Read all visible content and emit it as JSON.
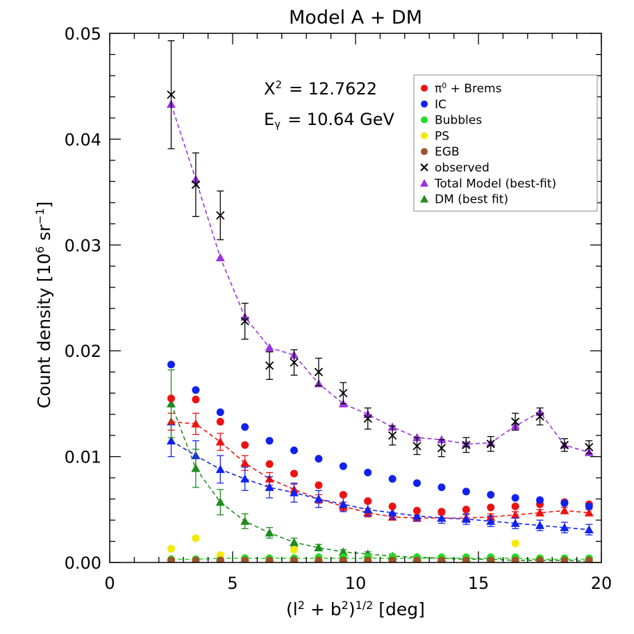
{
  "chart_data": {
    "type": "scatter",
    "title": "Model A + DM",
    "xlabel_parts": [
      "(l",
      "2",
      " + b",
      "2",
      ")",
      "1/2",
      " [deg]"
    ],
    "ylabel_parts": [
      "Count density  [10",
      "6",
      " sr",
      "−1",
      "]"
    ],
    "xlim": [
      0,
      20
    ],
    "ylim": [
      0,
      0.05
    ],
    "xticks": [
      0,
      5,
      10,
      15,
      20
    ],
    "xtick_labels": [
      "0",
      "5",
      "10",
      "15",
      "20"
    ],
    "yticks": [
      0,
      0.01,
      0.02,
      0.03,
      0.04,
      0.05
    ],
    "ytick_labels": [
      "0.00",
      "0.01",
      "0.02",
      "0.03",
      "0.04",
      "0.05"
    ],
    "annotations": {
      "chi2": [
        "X",
        "2",
        "= 12.7622"
      ],
      "energy": [
        "E",
        "γ",
        "= 10.64 GeV"
      ]
    },
    "legend_position": "top-right",
    "x": [
      2.5,
      3.5,
      4.5,
      5.5,
      6.5,
      7.5,
      8.5,
      9.5,
      10.5,
      11.5,
      12.5,
      13.5,
      14.5,
      15.5,
      16.5,
      17.5,
      18.5,
      19.5
    ],
    "series": [
      {
        "name": "π⁰ + Brems",
        "legend_parts": [
          "π",
          "0",
          " + Brems"
        ],
        "marker": "circle",
        "color": "#ee1111",
        "values": [
          0.0155,
          0.0154,
          0.0133,
          0.0111,
          0.0093,
          0.0084,
          0.0073,
          0.0064,
          0.0058,
          0.0053,
          0.0049,
          0.0048,
          0.005,
          0.0052,
          0.0053,
          0.0055,
          0.0057,
          0.0055
        ]
      },
      {
        "name": "IC",
        "marker": "circle",
        "color": "#1122ee",
        "values": [
          0.0187,
          0.0163,
          0.0142,
          0.0128,
          0.0115,
          0.0106,
          0.0098,
          0.0091,
          0.0085,
          0.0079,
          0.0075,
          0.0071,
          0.0067,
          0.0064,
          0.0061,
          0.0059,
          0.0056,
          0.0053
        ]
      },
      {
        "name": "Bubbles",
        "marker": "circle",
        "color": "#22dd22",
        "values": [
          0.0003,
          0.0003,
          0.0003,
          0.0004,
          0.0004,
          0.0004,
          0.0005,
          0.0005,
          0.0005,
          0.0005,
          0.0005,
          0.0005,
          0.0005,
          0.0005,
          0.0005,
          0.0004,
          0.0004,
          0.0004
        ]
      },
      {
        "name": "PS",
        "marker": "circle",
        "color": "#f2ea00",
        "values": [
          0.0013,
          0.0023,
          0.0007,
          0.0002,
          0.0002,
          0.0012,
          0.0002,
          0.0001,
          0.0001,
          0.0001,
          0.0001,
          0.0001,
          0.0001,
          0.0001,
          0.0018,
          0.0001,
          0.0001,
          0.0001
        ]
      },
      {
        "name": "EGB",
        "marker": "circle",
        "color": "#a0522d",
        "values": [
          0.0002,
          0.0002,
          0.0002,
          0.0002,
          0.0002,
          0.0002,
          0.0002,
          0.0002,
          0.0002,
          0.0002,
          0.0002,
          0.0002,
          0.0002,
          0.0002,
          0.0002,
          0.0002,
          0.0002,
          0.0002
        ]
      },
      {
        "name": "observed",
        "marker": "x",
        "color": "#000000",
        "values": [
          0.0442,
          0.0357,
          0.0328,
          0.0228,
          0.0186,
          0.0189,
          0.018,
          0.016,
          0.0136,
          0.012,
          0.011,
          0.0108,
          0.0111,
          0.0112,
          0.0133,
          0.0138,
          0.0111,
          0.0109
        ],
        "errors": [
          0.0051,
          0.003,
          0.0023,
          0.0017,
          0.0013,
          0.0012,
          0.0013,
          0.001,
          0.001,
          0.0009,
          0.0008,
          0.0008,
          0.0007,
          0.0007,
          0.0008,
          0.0008,
          0.0006,
          0.0006
        ]
      },
      {
        "name": "Total Model (best-fit)",
        "marker": "triangle",
        "color": "#9932e0",
        "dashed_line": true,
        "values": [
          0.0433,
          0.0362,
          0.0288,
          0.0232,
          0.0203,
          0.0196,
          0.0169,
          0.015,
          0.014,
          0.0128,
          0.0118,
          0.0116,
          0.0112,
          0.0113,
          0.0129,
          0.0142,
          0.0111,
          0.0104
        ]
      },
      {
        "name": "DM (best fit)",
        "marker": "triangle",
        "color": "#1e8c1e",
        "dashed_line": true,
        "values": [
          0.015,
          0.0089,
          0.0057,
          0.0039,
          0.0028,
          0.0019,
          0.0014,
          0.001,
          0.0008,
          0.0006,
          0.0005,
          0.0004,
          0.0003,
          0.0003,
          0.0002,
          0.0002,
          0.0002,
          0.0001
        ],
        "errors": [
          0.0032,
          0.0018,
          0.0012,
          0.0007,
          0.0005,
          0.0004,
          0.0003,
          0.0002,
          0.0002,
          0.0002,
          0.0001,
          0.0001,
          0.0001,
          0.0001,
          0.0001,
          0.0001,
          0.0001,
          0.0001
        ]
      },
      {
        "name": "π⁰ + Brems (fit)",
        "marker": "triangle",
        "color": "#ee1111",
        "dashed_line": true,
        "in_legend": false,
        "values": [
          0.0133,
          0.0131,
          0.0114,
          0.0094,
          0.0079,
          0.0069,
          0.006,
          0.0053,
          0.0047,
          0.0043,
          0.0042,
          0.0042,
          0.0042,
          0.0043,
          0.0045,
          0.0047,
          0.0049,
          0.0047
        ],
        "errors": [
          0.0008,
          0.001,
          0.0008,
          0.0007,
          0.0006,
          0.0005,
          0.0004,
          0.0004,
          0.0004,
          0.0003,
          0.0003,
          0.0003,
          0.0003,
          0.0003,
          0.0003,
          0.0003,
          0.0003,
          0.0003
        ]
      },
      {
        "name": "IC (fit)",
        "marker": "triangle",
        "color": "#1122ee",
        "dashed_line": true,
        "in_legend": false,
        "values": [
          0.0115,
          0.0101,
          0.0088,
          0.0079,
          0.0071,
          0.0066,
          0.006,
          0.0055,
          0.005,
          0.0047,
          0.0044,
          0.0042,
          0.0041,
          0.0039,
          0.0037,
          0.0035,
          0.0033,
          0.0031
        ],
        "errors": [
          0.0015,
          0.0014,
          0.0013,
          0.0011,
          0.001,
          0.0009,
          0.0008,
          0.0007,
          0.0006,
          0.0006,
          0.0005,
          0.0005,
          0.0005,
          0.0005,
          0.0005,
          0.0005,
          0.0005,
          0.0005
        ]
      },
      {
        "name": "Bubbles (fit)",
        "marker": "triangle",
        "color": "#22dd22",
        "dashed_line": true,
        "in_legend": false,
        "values": [
          0.0003,
          0.0003,
          0.0004,
          0.0004,
          0.0004,
          0.0004,
          0.0004,
          0.0004,
          0.0004,
          0.0004,
          0.0004,
          0.0004,
          0.0004,
          0.0004,
          0.0004,
          0.0003,
          0.0003,
          0.0003
        ]
      }
    ]
  }
}
